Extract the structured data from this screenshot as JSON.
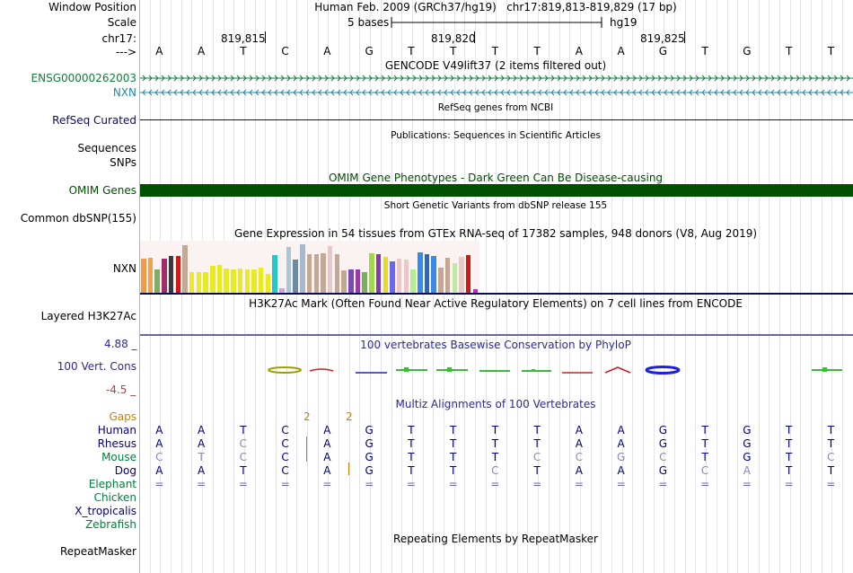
{
  "header": {
    "window_position_label": "Window Position",
    "window_position_text": "Human Feb. 2009 (GRCh37/hg19)   chr17:819,813-819,829 (17 bp)",
    "scale_label": "Scale",
    "scale_bar_text": "5 bases",
    "scale_assembly": "hg19",
    "chrom_label": "chr17:",
    "coords": [
      "819,815",
      "819,820",
      "819,825"
    ],
    "strand_label": "--->",
    "sequence": [
      "A",
      "A",
      "T",
      "C",
      "A",
      "G",
      "T",
      "T",
      "T",
      "T",
      "A",
      "A",
      "G",
      "T",
      "G",
      "T",
      "T"
    ]
  },
  "tracks": {
    "gencode": {
      "title": "GENCODE V49lift37 (2 items filtered out)",
      "items": [
        {
          "name": "ENSG00000262003",
          "color": "#0f7f3a",
          "direction": ">"
        },
        {
          "name": "NXN",
          "color": "#1e8aa8",
          "direction": "<"
        }
      ]
    },
    "refseq": {
      "label": "RefSeq Curated",
      "title": "RefSeq genes from NCBI"
    },
    "publications": {
      "label": "Sequences",
      "title": "Publications: Sequences in Scientific Articles"
    },
    "snps": {
      "label": "SNPs"
    },
    "omim": {
      "label": "OMIM Genes",
      "title": "OMIM Gene Phenotypes - Dark Green Can Be Disease-causing",
      "color": "#005000"
    },
    "dbsnp": {
      "label": "Common dbSNP(155)",
      "title": "Short Genetic Variants from dbSNP release 155"
    },
    "gtex": {
      "label": "NXN",
      "title": "Gene Expression in 54 tissues from GTEx RNA-seq of 17382 samples, 948 donors (V8, Aug 2019)",
      "bars": [
        {
          "v": 0.7,
          "c": "#f49a43"
        },
        {
          "v": 0.72,
          "c": "#f5a04d"
        },
        {
          "v": 0.48,
          "c": "#7fab62"
        },
        {
          "v": 0.7,
          "c": "#a52a6a"
        },
        {
          "v": 0.76,
          "c": "#3a3a3a"
        },
        {
          "v": 0.76,
          "c": "#d01818"
        },
        {
          "v": 0.98,
          "c": "#c5a894"
        },
        {
          "v": 0.42,
          "c": "#eaea22"
        },
        {
          "v": 0.42,
          "c": "#eaea22"
        },
        {
          "v": 0.42,
          "c": "#eaea22"
        },
        {
          "v": 0.56,
          "c": "#eaea22"
        },
        {
          "v": 0.58,
          "c": "#eaea22"
        },
        {
          "v": 0.5,
          "c": "#eaea22"
        },
        {
          "v": 0.48,
          "c": "#eaea22"
        },
        {
          "v": 0.5,
          "c": "#eaea22"
        },
        {
          "v": 0.48,
          "c": "#eaea22"
        },
        {
          "v": 0.48,
          "c": "#eaea22"
        },
        {
          "v": 0.52,
          "c": "#eaea22"
        },
        {
          "v": 0.38,
          "c": "#eaea22"
        },
        {
          "v": 0.78,
          "c": "#22c8c8"
        },
        {
          "v": 0.1,
          "c": "#d0a0e8"
        },
        {
          "v": 0.94,
          "c": "#a8c8d8"
        },
        {
          "v": 0.68,
          "c": "#6a8aa8"
        },
        {
          "v": 1.0,
          "c": "#a8b8d0"
        },
        {
          "v": 0.8,
          "c": "#c5a894"
        },
        {
          "v": 0.8,
          "c": "#c5a894"
        },
        {
          "v": 0.82,
          "c": "#c5a894"
        },
        {
          "v": 0.96,
          "c": "#eac8c8"
        },
        {
          "v": 0.8,
          "c": "#c5a894"
        },
        {
          "v": 0.46,
          "c": "#c5a894"
        },
        {
          "v": 0.48,
          "c": "#7a4ab0"
        },
        {
          "v": 0.48,
          "c": "#9a3aa8"
        },
        {
          "v": 0.42,
          "c": "#7fab62"
        },
        {
          "v": 0.82,
          "c": "#a0d84a"
        },
        {
          "v": 0.8,
          "c": "#8a3aa8"
        },
        {
          "v": 0.74,
          "c": "#eada22"
        },
        {
          "v": 0.64,
          "c": "#6a6ae8"
        },
        {
          "v": 0.7,
          "c": "#eac8c8"
        },
        {
          "v": 0.68,
          "c": "#eac8c8"
        },
        {
          "v": 0.48,
          "c": "#b0f090"
        },
        {
          "v": 0.84,
          "c": "#3a8ae8"
        },
        {
          "v": 0.8,
          "c": "#2a6ab8"
        },
        {
          "v": 0.76,
          "c": "#3a8ae8"
        },
        {
          "v": 0.52,
          "c": "#c5a894"
        },
        {
          "v": 0.72,
          "c": "#c5a894"
        },
        {
          "v": 0.62,
          "c": "#c0e8a8"
        },
        {
          "v": 0.74,
          "c": "#eac8c8"
        },
        {
          "v": 0.78,
          "c": "#d01818"
        },
        {
          "v": 0.08,
          "c": "#d020d0"
        }
      ]
    },
    "h3k27ac": {
      "label": "Layered H3K27Ac",
      "title": "H3K27Ac Mark (Often Found Near Active Regulatory Elements) on 7 cell lines from ENCODE"
    },
    "conservation": {
      "label": "100 Vert. Cons",
      "title": "100 vertebrates Basewise Conservation by PhyloP",
      "ymax": "4.88 _",
      "ymin": "-4.5 _"
    },
    "multiz": {
      "title": "Multiz Alignments of 100 Vertebrates",
      "gaps_label": "Gaps",
      "gap_marks": [
        "2",
        "2"
      ],
      "species": [
        {
          "name": "Human",
          "color": "#000080",
          "bases": [
            "A",
            "A",
            "T",
            "C",
            "A",
            "G",
            "T",
            "T",
            "T",
            "T",
            "A",
            "A",
            "G",
            "T",
            "G",
            "T",
            "T"
          ]
        },
        {
          "name": "Rhesus",
          "color": "#000080",
          "bases": [
            "A",
            "A",
            "C",
            "C",
            "A",
            "G",
            "T",
            "T",
            "T",
            "T",
            "A",
            "A",
            "G",
            "T",
            "G",
            "T",
            "T"
          ]
        },
        {
          "name": "Mouse",
          "color": "#00803a",
          "bases": [
            "C",
            "T",
            "C",
            "C",
            "A",
            "G",
            "T",
            "T",
            "T",
            "C",
            "C",
            "G",
            "C",
            "T",
            "G",
            "T",
            "C"
          ]
        },
        {
          "name": "Dog",
          "color": "#000080",
          "bases": [
            "A",
            "A",
            "T",
            "C",
            "A",
            "G",
            "T",
            "T",
            "C",
            "T",
            "A",
            "A",
            "G",
            "C",
            "A",
            "T",
            "T"
          ]
        },
        {
          "name": "Elephant",
          "color": "#00803a",
          "bases": [
            "=",
            "=",
            "=",
            "=",
            "=",
            "=",
            "=",
            "=",
            "=",
            "=",
            "=",
            "=",
            "=",
            "=",
            "=",
            "=",
            "="
          ]
        },
        {
          "name": "Chicken",
          "color": "#00803a",
          "bases": []
        },
        {
          "name": "X_tropicalis",
          "color": "#000080",
          "bases": []
        },
        {
          "name": "Zebrafish",
          "color": "#00803a",
          "bases": []
        }
      ]
    },
    "repeatmasker": {
      "label": "RepeatMasker",
      "title": "Repeating Elements by RepeatMasker"
    }
  }
}
